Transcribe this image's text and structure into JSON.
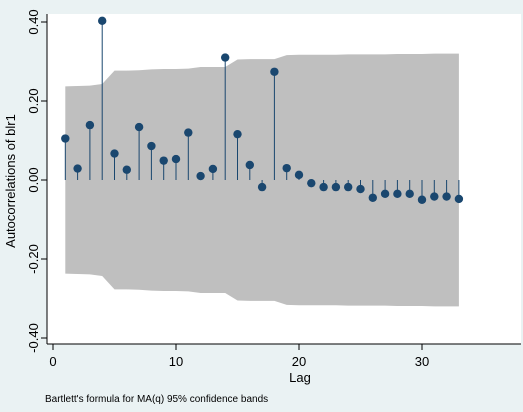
{
  "chart_data": {
    "type": "stem",
    "ylabel": "Autocorrelations of blr1",
    "xlabel": "Lag",
    "note": "Bartlett's formula for MA(q) 95% confidence bands",
    "xlim": [
      0,
      38
    ],
    "ylim": [
      -0.42,
      0.42
    ],
    "xticks": [
      0,
      10,
      20,
      30
    ],
    "xtick_labels": [
      "0",
      "10",
      "20",
      "30"
    ],
    "yticks": [
      -0.4,
      -0.2,
      0.0,
      0.2,
      0.4
    ],
    "ytick_labels": [
      "-0.40",
      "-0.20",
      "0.00",
      "0.20",
      "0.40"
    ],
    "grid": false,
    "colors": {
      "marker": "#1a476f",
      "band": "#bfbfbf",
      "plot_bg": "#ffffff",
      "frame_bg": "#eaf2f3"
    },
    "series": [
      {
        "name": "",
        "x": [
          1,
          2,
          3,
          4,
          5,
          6,
          7,
          8,
          9,
          10,
          11,
          12,
          13,
          14,
          15,
          16,
          17,
          18,
          19,
          20,
          21,
          22,
          23,
          24,
          25,
          26,
          27,
          28,
          29,
          30,
          31,
          32,
          33
        ],
        "values": [
          0.105,
          0.029,
          0.139,
          0.403,
          0.067,
          0.026,
          0.134,
          0.086,
          0.049,
          0.053,
          0.12,
          0.01,
          0.028,
          0.31,
          0.116,
          0.038,
          -0.018,
          0.274,
          0.03,
          0.013,
          -0.008,
          -0.018,
          -0.018,
          -0.018,
          -0.023,
          -0.045,
          -0.035,
          -0.035,
          -0.035,
          -0.05,
          -0.042,
          -0.042,
          -0.048
        ]
      }
    ],
    "confidence_band": {
      "x": [
        1,
        2,
        3,
        4,
        5,
        6,
        7,
        8,
        9,
        10,
        11,
        12,
        13,
        14,
        15,
        16,
        17,
        18,
        19,
        20,
        21,
        22,
        23,
        24,
        25,
        26,
        27,
        28,
        29,
        30,
        31,
        32,
        33
      ],
      "upper": [
        0.237,
        0.238,
        0.239,
        0.243,
        0.277,
        0.277,
        0.278,
        0.28,
        0.281,
        0.281,
        0.282,
        0.286,
        0.286,
        0.286,
        0.305,
        0.306,
        0.306,
        0.306,
        0.316,
        0.317,
        0.317,
        0.317,
        0.317,
        0.318,
        0.318,
        0.318,
        0.318,
        0.319,
        0.319,
        0.319,
        0.32,
        0.32,
        0.32
      ]
    }
  }
}
